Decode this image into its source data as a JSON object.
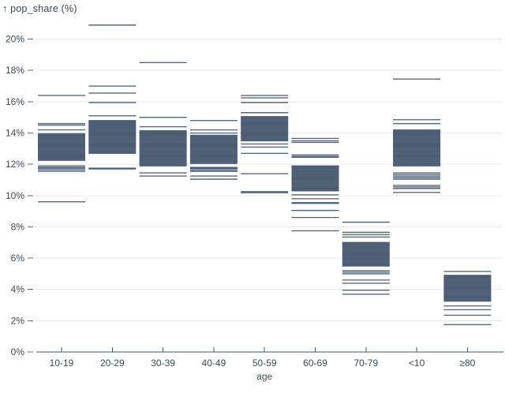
{
  "colors": {
    "tick": "#3c4f66",
    "grid": "#e5e8ec",
    "axis_text": "#3a4b5d",
    "baseline": "#46586c",
    "tick_mark": "#5d6d7e"
  },
  "chart_data": {
    "type": "tick",
    "y_axis_title": "↑ pop_share (%)",
    "xlabel": "age",
    "ylabel": "pop_share (%)",
    "grid": true,
    "ylim": [
      0,
      21.5
    ],
    "categories": [
      "10-19",
      "20-29",
      "30-39",
      "40-49",
      "50-59",
      "60-69",
      "70-79",
      "<10",
      "≥80"
    ],
    "y_axis": {
      "ticks": [
        {
          "value": 0,
          "label": "0%"
        },
        {
          "value": 2,
          "label": "2%"
        },
        {
          "value": 4,
          "label": "4%"
        },
        {
          "value": 6,
          "label": "6%"
        },
        {
          "value": 8,
          "label": "8%"
        },
        {
          "value": 10,
          "label": "10%"
        },
        {
          "value": 12,
          "label": "12%"
        },
        {
          "value": 14,
          "label": "14%"
        },
        {
          "value": 16,
          "label": "16%"
        },
        {
          "value": 18,
          "label": "18%"
        },
        {
          "value": 20,
          "label": "20%"
        }
      ]
    },
    "series": [
      {
        "age": "10-19",
        "values": [
          16.4,
          14.6,
          14.5,
          14.2,
          13.95,
          13.9,
          13.85,
          13.8,
          13.75,
          13.7,
          13.65,
          13.6,
          13.55,
          13.5,
          13.45,
          13.4,
          13.35,
          13.3,
          13.25,
          13.2,
          13.15,
          13.1,
          13.05,
          13.0,
          12.95,
          12.9,
          12.85,
          12.8,
          12.75,
          12.7,
          12.65,
          12.6,
          12.55,
          12.5,
          12.45,
          12.4,
          12.35,
          12.3,
          12.25,
          11.9,
          11.8,
          11.75,
          11.65,
          11.55,
          9.6
        ]
      },
      {
        "age": "20-29",
        "values": [
          20.9,
          17.0,
          16.55,
          15.95,
          15.1,
          14.8,
          14.75,
          14.7,
          14.65,
          14.6,
          14.55,
          14.5,
          14.45,
          14.4,
          14.35,
          14.3,
          14.25,
          14.2,
          14.15,
          14.1,
          14.05,
          14.0,
          13.95,
          13.9,
          13.85,
          13.8,
          13.75,
          13.7,
          13.65,
          13.6,
          13.55,
          13.5,
          13.45,
          13.4,
          13.35,
          13.3,
          13.25,
          13.2,
          13.15,
          13.1,
          13.05,
          13.0,
          12.95,
          12.9,
          12.85,
          12.8,
          12.75,
          12.7,
          11.75,
          11.7
        ]
      },
      {
        "age": "30-39",
        "values": [
          18.5,
          15.0,
          14.4,
          14.15,
          14.1,
          14.05,
          14.0,
          13.95,
          13.9,
          13.85,
          13.8,
          13.75,
          13.7,
          13.65,
          13.6,
          13.55,
          13.5,
          13.45,
          13.4,
          13.35,
          13.3,
          13.25,
          13.2,
          13.15,
          13.1,
          13.05,
          13.0,
          12.95,
          12.9,
          12.85,
          12.8,
          12.75,
          12.7,
          12.65,
          12.6,
          12.55,
          12.5,
          12.45,
          12.4,
          12.35,
          12.3,
          12.25,
          12.2,
          12.15,
          12.1,
          12.05,
          12.0,
          11.95,
          11.9,
          11.45,
          11.25
        ]
      },
      {
        "age": "40-49",
        "values": [
          14.8,
          14.2,
          14.0,
          13.85,
          13.8,
          13.75,
          13.7,
          13.65,
          13.6,
          13.55,
          13.5,
          13.45,
          13.4,
          13.35,
          13.3,
          13.25,
          13.2,
          13.15,
          13.1,
          13.05,
          13.0,
          12.95,
          12.9,
          12.85,
          12.8,
          12.75,
          12.7,
          12.65,
          12.6,
          12.55,
          12.5,
          12.45,
          12.4,
          12.35,
          12.3,
          12.25,
          12.2,
          12.15,
          12.1,
          12.05,
          11.8,
          11.75,
          11.7,
          11.6,
          11.55,
          11.25,
          11.05
        ]
      },
      {
        "age": "50-59",
        "values": [
          16.4,
          16.25,
          15.95,
          15.3,
          15.05,
          15.0,
          14.95,
          14.9,
          14.85,
          14.8,
          14.75,
          14.7,
          14.65,
          14.6,
          14.55,
          14.5,
          14.45,
          14.4,
          14.35,
          14.3,
          14.25,
          14.2,
          14.15,
          14.1,
          14.05,
          14.0,
          13.95,
          13.9,
          13.85,
          13.8,
          13.75,
          13.7,
          13.65,
          13.6,
          13.55,
          13.5,
          13.3,
          13.1,
          12.7,
          11.4,
          10.25,
          10.18
        ]
      },
      {
        "age": "60-69",
        "values": [
          13.65,
          13.5,
          13.4,
          12.6,
          12.5,
          12.45,
          11.9,
          11.85,
          11.8,
          11.75,
          11.7,
          11.65,
          11.6,
          11.55,
          11.5,
          11.45,
          11.4,
          11.35,
          11.3,
          11.25,
          11.2,
          11.15,
          11.1,
          11.05,
          11.0,
          10.95,
          10.9,
          10.85,
          10.8,
          10.75,
          10.7,
          10.65,
          10.6,
          10.55,
          10.5,
          10.45,
          10.4,
          10.35,
          10.3,
          10.05,
          9.8,
          9.55,
          9.5,
          9.05,
          8.6,
          7.75
        ]
      },
      {
        "age": "70-79",
        "values": [
          8.3,
          7.65,
          7.5,
          7.35,
          7.0,
          6.95,
          6.9,
          6.85,
          6.8,
          6.75,
          6.7,
          6.65,
          6.6,
          6.55,
          6.5,
          6.45,
          6.4,
          6.35,
          6.3,
          6.25,
          6.2,
          6.15,
          6.1,
          6.05,
          6.0,
          5.95,
          5.9,
          5.85,
          5.8,
          5.75,
          5.7,
          5.65,
          5.6,
          5.55,
          5.5,
          5.2,
          5.1,
          5.0,
          4.6,
          4.4,
          3.95,
          3.7
        ]
      },
      {
        "age": "<10",
        "values": [
          17.45,
          14.85,
          14.6,
          14.2,
          14.15,
          14.1,
          14.05,
          14.0,
          13.95,
          13.9,
          13.85,
          13.8,
          13.75,
          13.7,
          13.65,
          13.6,
          13.55,
          13.5,
          13.45,
          13.4,
          13.35,
          13.3,
          13.25,
          13.2,
          13.15,
          13.1,
          13.05,
          13.0,
          12.95,
          12.9,
          12.85,
          12.8,
          12.75,
          12.7,
          12.65,
          12.6,
          12.55,
          12.5,
          12.45,
          12.4,
          12.35,
          12.3,
          12.25,
          12.2,
          12.15,
          12.1,
          12.05,
          12.0,
          11.95,
          11.9,
          11.45,
          11.35,
          11.25,
          11.15,
          11.05,
          10.65,
          10.55,
          10.45,
          10.2
        ]
      },
      {
        "age": "≥80",
        "values": [
          5.15,
          4.9,
          4.85,
          4.8,
          4.75,
          4.7,
          4.65,
          4.6,
          4.55,
          4.5,
          4.45,
          4.4,
          4.35,
          4.3,
          4.25,
          4.2,
          4.15,
          4.1,
          4.05,
          4.0,
          3.95,
          3.9,
          3.85,
          3.8,
          3.75,
          3.7,
          3.65,
          3.6,
          3.55,
          3.5,
          3.45,
          3.4,
          3.35,
          3.3,
          3.25,
          2.95,
          2.7,
          2.35,
          1.75
        ]
      }
    ]
  }
}
